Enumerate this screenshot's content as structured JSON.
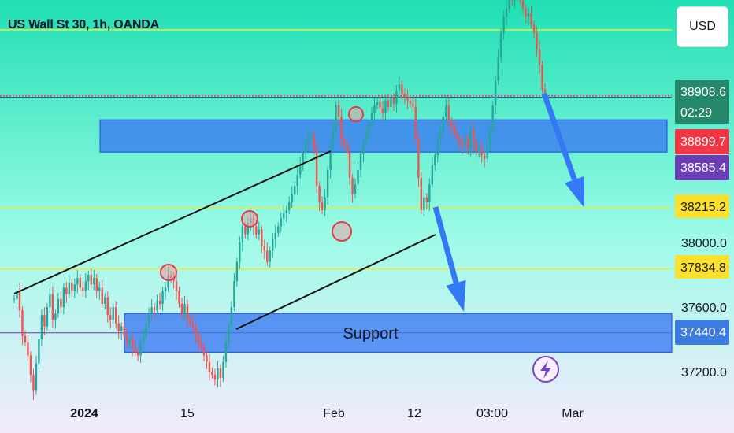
{
  "header": {
    "title": "US Wall St 30, 1h, OANDA",
    "currency_button": "USD"
  },
  "chart_data": {
    "type": "line",
    "title": "US Wall St 30, 1h, OANDA",
    "xlabel": "",
    "ylabel": "",
    "ylim": [
      37000,
      39700
    ],
    "x_tick_labels": [
      "2024",
      "15",
      "Feb",
      "12",
      "03:00",
      "Mar"
    ],
    "y_tick_labels": [
      "38000.0",
      "37600.0",
      "37200.0"
    ],
    "y_ticks": [
      38000,
      37600,
      37200
    ],
    "grid": false,
    "series": [
      {
        "values": [
          37650,
          37700,
          37580,
          37420,
          37380,
          37300,
          37180,
          37080,
          37250,
          37400,
          37550,
          37480,
          37600,
          37680,
          37520,
          37560,
          37650,
          37600,
          37720,
          37680,
          37750,
          37700,
          37740,
          37780,
          37720,
          37700,
          37760,
          37800,
          37740,
          37780,
          37700,
          37720,
          37620,
          37660,
          37550,
          37520,
          37600,
          37500,
          37450,
          37480,
          37420,
          37380,
          37400,
          37350,
          37320,
          37300,
          37380,
          37420,
          37500,
          37560,
          37600,
          37580,
          37640,
          37620,
          37700,
          37720,
          37800,
          37780,
          37760,
          37700,
          37620,
          37560,
          37620,
          37520,
          37500,
          37480,
          37420,
          37380,
          37350,
          37300,
          37260,
          37200,
          37180,
          37150,
          37220,
          37160,
          37260,
          37380,
          37480,
          37600,
          37760,
          37880,
          38000,
          38100,
          38050,
          38120,
          38150,
          38100,
          38050,
          38080,
          37980,
          37950,
          37880,
          37950,
          38020,
          38060,
          38100,
          38150,
          38180,
          38200,
          38250,
          38300,
          38350,
          38420,
          38480,
          38560,
          38620,
          38660,
          38660,
          38580,
          38350,
          38250,
          38200,
          38280,
          38450,
          38600,
          38700,
          38850,
          38780,
          38640,
          38600,
          38560,
          38400,
          38300,
          38360,
          38450,
          38550,
          38620,
          38680,
          38730,
          38800,
          38850,
          38870,
          38830,
          38800,
          38880,
          38840,
          38900,
          38860,
          38940,
          38980,
          38920,
          38900,
          38880,
          38860,
          38840,
          38650,
          38400,
          38200,
          38280,
          38250,
          38360,
          38480,
          38540,
          38640,
          38700,
          38780,
          38850,
          38750,
          38720,
          38680,
          38640,
          38620,
          38600,
          38650,
          38580,
          38700,
          38620,
          38560,
          38580,
          38540,
          38520,
          38600,
          38700,
          38850,
          39000,
          39150,
          39300,
          39400,
          39450,
          39550,
          39500,
          39600,
          39550,
          39500,
          39450,
          39400,
          39420,
          39350,
          39300,
          39200,
          39100,
          38950,
          38908.6
        ]
      }
    ],
    "price_levels": [
      {
        "label": "38908.6",
        "price": 38908.6,
        "color": "#26886a",
        "sublabel": "02:29"
      },
      {
        "label": "38899.7",
        "price": 38899.7,
        "color": "#f23645"
      },
      {
        "label": "38585.4",
        "price": 38585.4,
        "color": "#6b3fb3"
      },
      {
        "label": "38215.2",
        "price": 38215.2,
        "color": "#fbe12d"
      },
      {
        "label": "37834.8",
        "price": 37834.8,
        "color": "#fbe12d"
      },
      {
        "label": "37440.4",
        "price": 37440.4,
        "color": "#3c7be0"
      }
    ],
    "zones": [
      {
        "label": "",
        "price_top": 38760,
        "price_bottom": 38560
      },
      {
        "label": "Support",
        "price_top": 37560,
        "price_bottom": 37320
      }
    ],
    "colors": {
      "background_top": "#1fdfb3",
      "background_bottom": "#f4eafe",
      "zone_fill": "#3a78f2",
      "arrow": "#3478f6",
      "candle_up": "#26a69a",
      "candle_down": "#ef5350"
    }
  }
}
